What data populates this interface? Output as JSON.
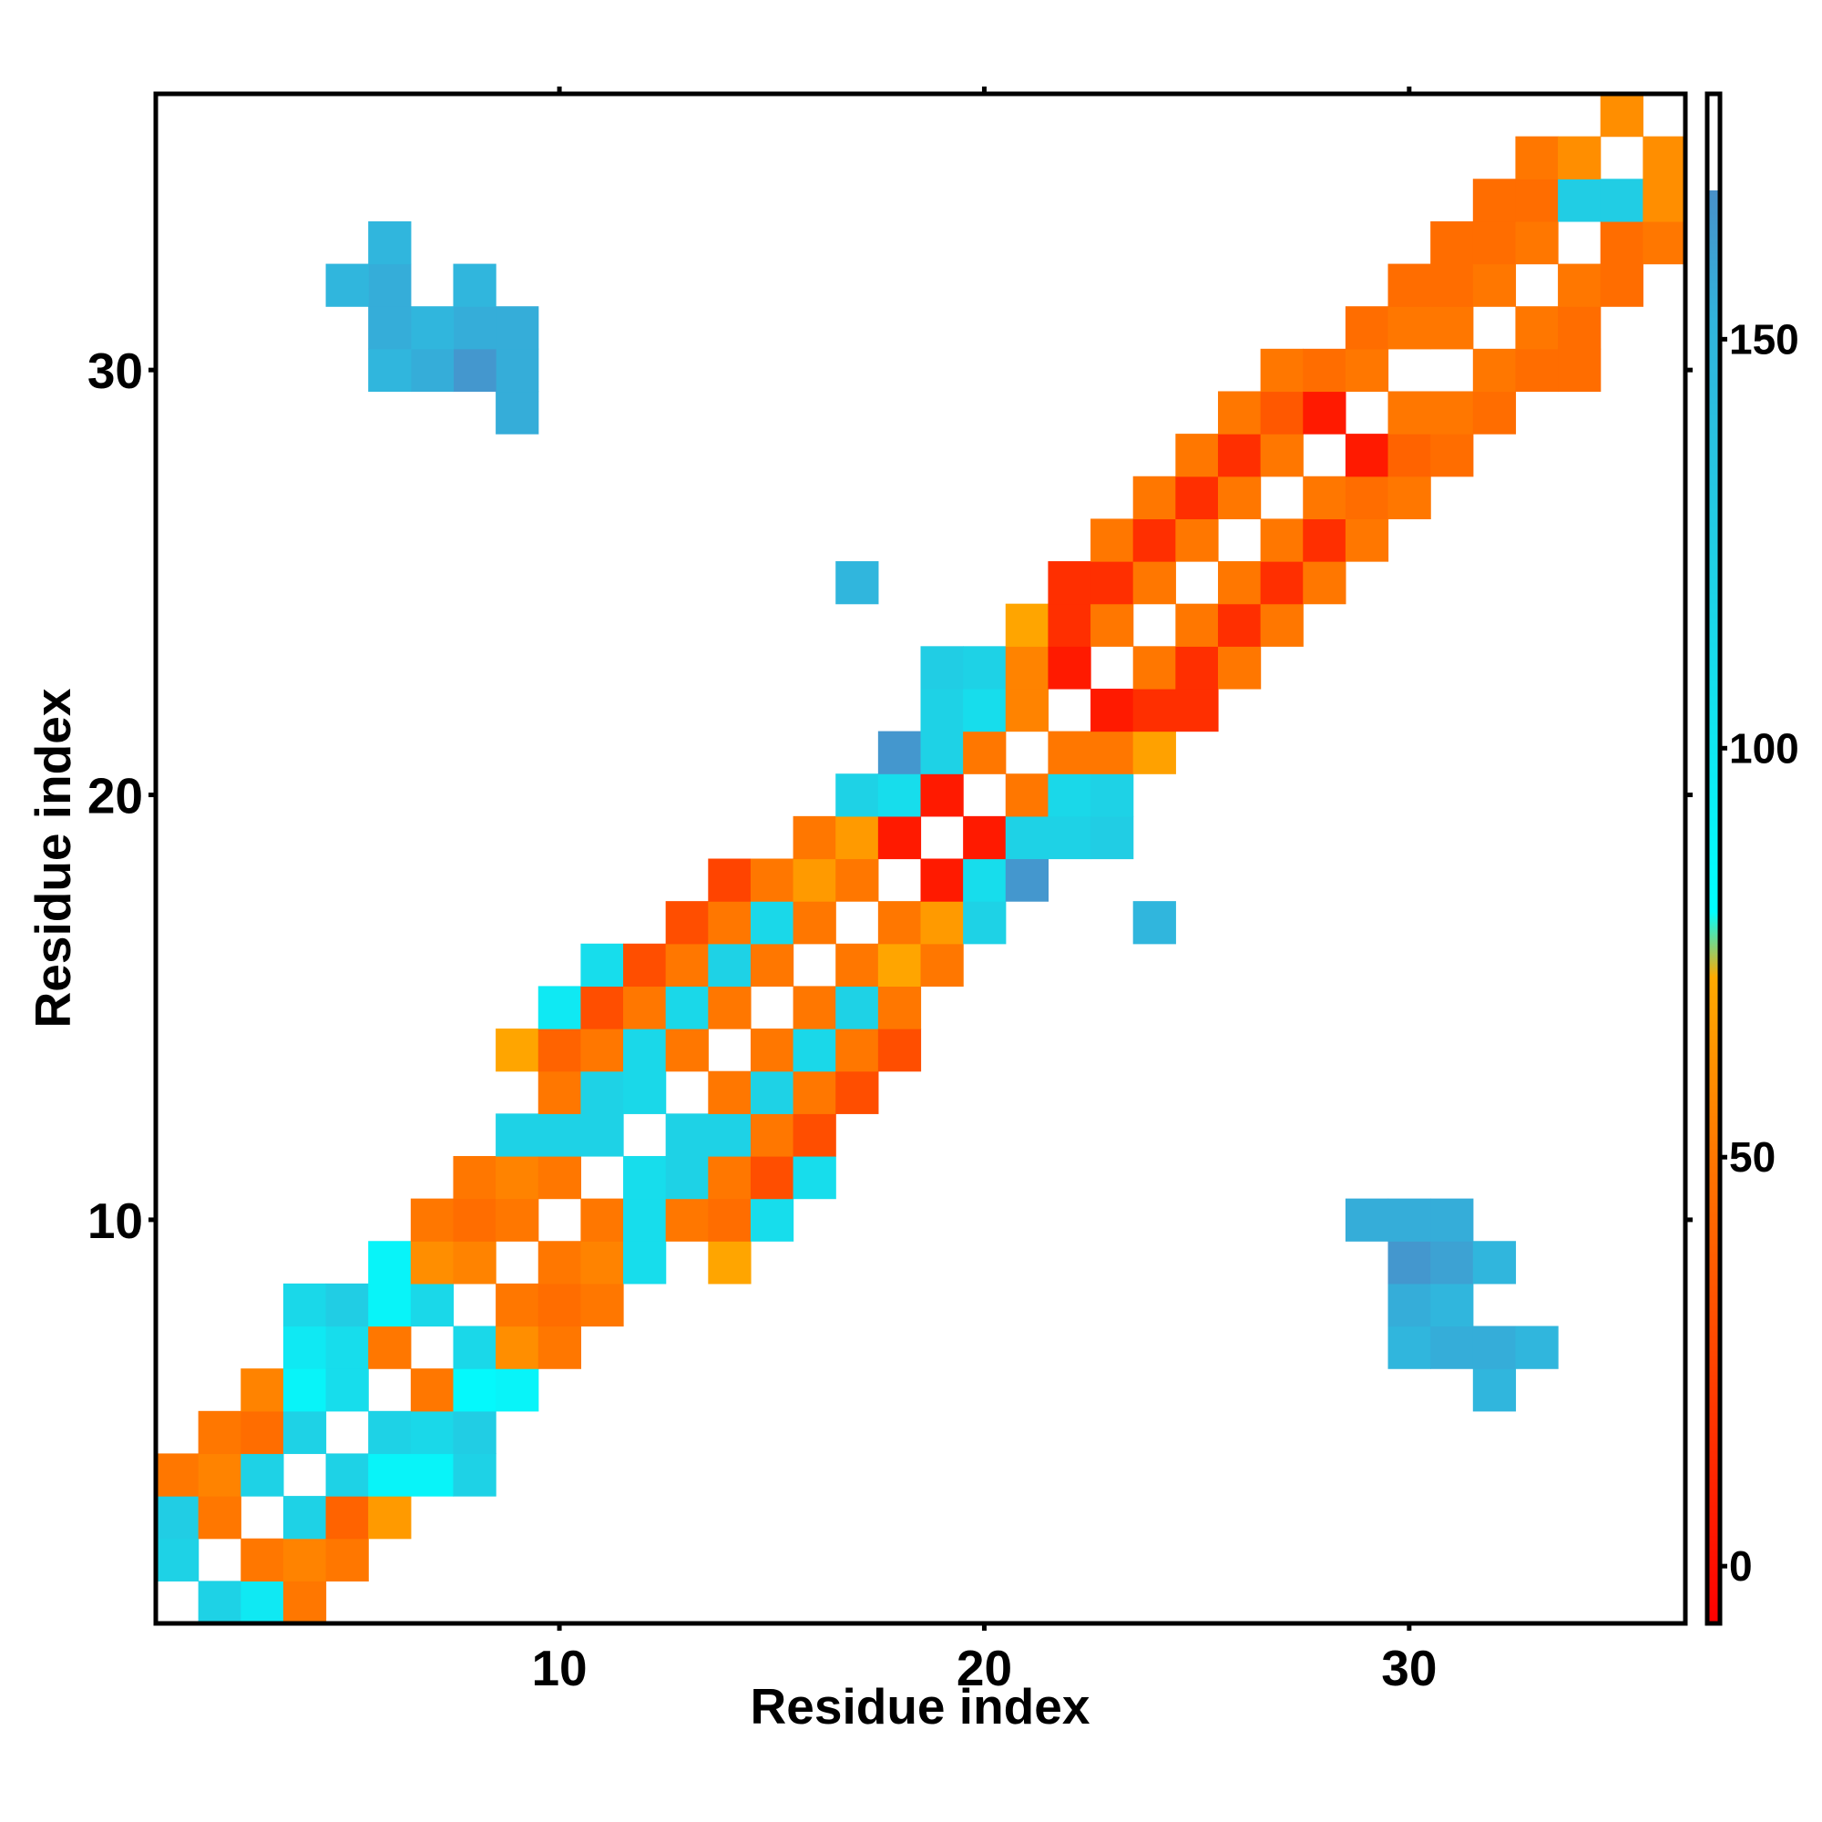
{
  "chart_data": {
    "type": "heatmap",
    "title": "",
    "xlabel": "Residue index",
    "ylabel": "Residue index",
    "xlim": [
      0.5,
      36.5
    ],
    "ylim": [
      0.5,
      36.5
    ],
    "x_ticks": [
      10,
      20,
      30
    ],
    "y_ticks": [
      10,
      20,
      30
    ],
    "grid": false,
    "colorbar": {
      "position": "right",
      "range": [
        -7,
        180
      ],
      "ticks": [
        0,
        50,
        100,
        150
      ],
      "stops": [
        {
          "value": -7,
          "color": "#ff0000"
        },
        {
          "value": 25,
          "color": "#ff4400"
        },
        {
          "value": 50,
          "color": "#ff7700"
        },
        {
          "value": 72,
          "color": "#ffaa00"
        },
        {
          "value": 80,
          "color": "#00ffff"
        },
        {
          "value": 120,
          "color": "#1ed2e6"
        },
        {
          "value": 152,
          "color": "#31b4dc"
        },
        {
          "value": 170,
          "color": "#4b8cc8"
        },
        {
          "value": 180,
          "color": "#4b8cc8"
        }
      ],
      "top_color": "#ffffff"
    },
    "cells": [
      [
        1,
        2,
        120
      ],
      [
        1,
        3,
        125
      ],
      [
        1,
        4,
        50
      ],
      [
        2,
        1,
        120
      ],
      [
        2,
        3,
        50
      ],
      [
        2,
        4,
        55
      ],
      [
        2,
        5,
        50
      ],
      [
        3,
        1,
        100
      ],
      [
        3,
        2,
        50
      ],
      [
        3,
        4,
        120
      ],
      [
        3,
        5,
        45
      ],
      [
        3,
        6,
        55
      ],
      [
        4,
        1,
        50
      ],
      [
        4,
        2,
        55
      ],
      [
        4,
        3,
        120
      ],
      [
        4,
        5,
        120
      ],
      [
        4,
        6,
        90
      ],
      [
        4,
        7,
        100
      ],
      [
        4,
        8,
        115
      ],
      [
        5,
        2,
        50
      ],
      [
        5,
        3,
        40
      ],
      [
        5,
        4,
        120
      ],
      [
        5,
        6,
        110
      ],
      [
        5,
        7,
        110
      ],
      [
        5,
        8,
        125
      ],
      [
        6,
        3,
        65
      ],
      [
        6,
        4,
        90
      ],
      [
        6,
        5,
        120
      ],
      [
        6,
        7,
        50
      ],
      [
        6,
        8,
        90
      ],
      [
        6,
        9,
        90
      ],
      [
        7,
        4,
        90
      ],
      [
        7,
        5,
        115
      ],
      [
        7,
        6,
        50
      ],
      [
        7,
        8,
        115
      ],
      [
        7,
        9,
        60
      ],
      [
        7,
        10,
        50
      ],
      [
        8,
        4,
        120
      ],
      [
        8,
        5,
        125
      ],
      [
        8,
        6,
        85
      ],
      [
        8,
        7,
        115
      ],
      [
        8,
        9,
        55
      ],
      [
        8,
        10,
        45
      ],
      [
        8,
        11,
        50
      ],
      [
        9,
        6,
        90
      ],
      [
        9,
        7,
        60
      ],
      [
        9,
        8,
        50
      ],
      [
        9,
        10,
        50
      ],
      [
        9,
        11,
        55
      ],
      [
        9,
        12,
        120
      ],
      [
        9,
        14,
        70
      ],
      [
        10,
        7,
        50
      ],
      [
        10,
        8,
        45
      ],
      [
        10,
        9,
        50
      ],
      [
        10,
        11,
        50
      ],
      [
        10,
        12,
        120
      ],
      [
        10,
        13,
        50
      ],
      [
        10,
        14,
        40
      ],
      [
        10,
        15,
        100
      ],
      [
        11,
        8,
        50
      ],
      [
        11,
        9,
        55
      ],
      [
        11,
        10,
        50
      ],
      [
        11,
        12,
        120
      ],
      [
        11,
        13,
        120
      ],
      [
        11,
        14,
        50
      ],
      [
        11,
        15,
        30
      ],
      [
        11,
        16,
        110
      ],
      [
        12,
        9,
        110
      ],
      [
        12,
        10,
        110
      ],
      [
        12,
        11,
        110
      ],
      [
        12,
        13,
        115
      ],
      [
        12,
        14,
        115
      ],
      [
        12,
        15,
        50
      ],
      [
        12,
        16,
        30
      ],
      [
        13,
        10,
        50
      ],
      [
        13,
        11,
        120
      ],
      [
        13,
        12,
        120
      ],
      [
        13,
        14,
        50
      ],
      [
        13,
        15,
        115
      ],
      [
        13,
        16,
        50
      ],
      [
        13,
        17,
        30
      ],
      [
        14,
        9,
        70
      ],
      [
        14,
        10,
        45
      ],
      [
        14,
        11,
        50
      ],
      [
        14,
        12,
        120
      ],
      [
        14,
        13,
        50
      ],
      [
        14,
        15,
        50
      ],
      [
        14,
        16,
        120
      ],
      [
        14,
        17,
        50
      ],
      [
        14,
        18,
        25
      ],
      [
        15,
        10,
        110
      ],
      [
        15,
        11,
        30
      ],
      [
        15,
        12,
        50
      ],
      [
        15,
        13,
        120
      ],
      [
        15,
        14,
        50
      ],
      [
        15,
        16,
        50
      ],
      [
        15,
        17,
        115
      ],
      [
        15,
        18,
        50
      ],
      [
        16,
        11,
        110
      ],
      [
        16,
        12,
        30
      ],
      [
        16,
        13,
        50
      ],
      [
        16,
        14,
        115
      ],
      [
        16,
        15,
        50
      ],
      [
        16,
        17,
        50
      ],
      [
        16,
        18,
        65
      ],
      [
        16,
        19,
        50
      ],
      [
        17,
        13,
        30
      ],
      [
        17,
        14,
        50
      ],
      [
        17,
        15,
        120
      ],
      [
        17,
        16,
        50
      ],
      [
        17,
        18,
        50
      ],
      [
        17,
        19,
        65
      ],
      [
        17,
        20,
        120
      ],
      [
        17,
        25,
        150
      ],
      [
        18,
        14,
        30
      ],
      [
        18,
        15,
        50
      ],
      [
        18,
        16,
        70
      ],
      [
        18,
        17,
        50
      ],
      [
        18,
        19,
        5
      ],
      [
        18,
        20,
        110
      ],
      [
        18,
        21,
        165
      ],
      [
        19,
        16,
        50
      ],
      [
        19,
        17,
        65
      ],
      [
        19,
        18,
        5
      ],
      [
        19,
        20,
        5
      ],
      [
        19,
        21,
        120
      ],
      [
        19,
        22,
        120
      ],
      [
        19,
        23,
        125
      ],
      [
        20,
        17,
        120
      ],
      [
        20,
        18,
        110
      ],
      [
        20,
        19,
        5
      ],
      [
        20,
        21,
        50
      ],
      [
        20,
        22,
        110
      ],
      [
        20,
        23,
        120
      ],
      [
        21,
        18,
        165
      ],
      [
        21,
        19,
        120
      ],
      [
        21,
        20,
        50
      ],
      [
        21,
        22,
        55
      ],
      [
        21,
        23,
        55
      ],
      [
        21,
        24,
        70
      ],
      [
        22,
        19,
        120
      ],
      [
        22,
        20,
        115
      ],
      [
        22,
        21,
        50
      ],
      [
        22,
        23,
        5
      ],
      [
        22,
        24,
        15
      ],
      [
        22,
        25,
        15
      ],
      [
        23,
        19,
        125
      ],
      [
        23,
        20,
        120
      ],
      [
        23,
        21,
        50
      ],
      [
        23,
        22,
        5
      ],
      [
        23,
        24,
        50
      ],
      [
        23,
        25,
        15
      ],
      [
        23,
        26,
        50
      ],
      [
        24,
        17,
        150
      ],
      [
        24,
        21,
        68
      ],
      [
        24,
        22,
        15
      ],
      [
        24,
        23,
        50
      ],
      [
        24,
        25,
        50
      ],
      [
        24,
        26,
        15
      ],
      [
        24,
        27,
        50
      ],
      [
        25,
        22,
        15
      ],
      [
        25,
        23,
        15
      ],
      [
        25,
        24,
        50
      ],
      [
        25,
        26,
        50
      ],
      [
        25,
        27,
        15
      ],
      [
        25,
        28,
        50
      ],
      [
        26,
        23,
        50
      ],
      [
        26,
        24,
        15
      ],
      [
        26,
        25,
        50
      ],
      [
        26,
        27,
        50
      ],
      [
        26,
        28,
        15
      ],
      [
        26,
        29,
        50
      ],
      [
        27,
        24,
        50
      ],
      [
        27,
        25,
        15
      ],
      [
        27,
        26,
        50
      ],
      [
        27,
        28,
        50
      ],
      [
        27,
        29,
        35
      ],
      [
        27,
        30,
        50
      ],
      [
        28,
        25,
        50
      ],
      [
        28,
        26,
        15
      ],
      [
        28,
        27,
        50
      ],
      [
        28,
        29,
        5
      ],
      [
        28,
        30,
        45
      ],
      [
        29,
        10,
        155
      ],
      [
        29,
        26,
        50
      ],
      [
        29,
        27,
        45
      ],
      [
        29,
        28,
        5
      ],
      [
        29,
        30,
        50
      ],
      [
        29,
        31,
        45
      ],
      [
        30,
        7,
        150
      ],
      [
        30,
        8,
        155
      ],
      [
        30,
        9,
        165
      ],
      [
        30,
        10,
        155
      ],
      [
        30,
        27,
        50
      ],
      [
        30,
        28,
        40
      ],
      [
        30,
        29,
        50
      ],
      [
        30,
        31,
        50
      ],
      [
        30,
        32,
        45
      ],
      [
        31,
        7,
        155
      ],
      [
        31,
        8,
        150
      ],
      [
        31,
        9,
        160
      ],
      [
        31,
        10,
        155
      ],
      [
        31,
        28,
        45
      ],
      [
        31,
        29,
        50
      ],
      [
        31,
        31,
        50
      ],
      [
        31,
        32,
        45
      ],
      [
        31,
        33,
        45
      ],
      [
        32,
        6,
        150
      ],
      [
        32,
        7,
        155
      ],
      [
        32,
        9,
        150
      ],
      [
        32,
        29,
        45
      ],
      [
        32,
        30,
        50
      ],
      [
        32,
        32,
        50
      ],
      [
        32,
        33,
        45
      ],
      [
        32,
        34,
        45
      ],
      [
        33,
        7,
        150
      ],
      [
        33,
        30,
        45
      ],
      [
        33,
        31,
        50
      ],
      [
        33,
        33,
        50
      ],
      [
        33,
        34,
        45
      ],
      [
        33,
        35,
        50
      ],
      [
        34,
        30,
        45
      ],
      [
        34,
        31,
        45
      ],
      [
        34,
        32,
        50
      ],
      [
        34,
        34,
        125
      ],
      [
        34,
        35,
        60
      ],
      [
        35,
        32,
        45
      ],
      [
        35,
        33,
        45
      ],
      [
        35,
        34,
        125
      ],
      [
        35,
        36,
        60
      ],
      [
        36,
        33,
        50
      ],
      [
        36,
        34,
        60
      ],
      [
        36,
        35,
        60
      ],
      [
        9,
        29,
        155
      ],
      [
        9,
        30,
        155
      ],
      [
        9,
        31,
        155
      ],
      [
        8,
        30,
        165
      ],
      [
        8,
        31,
        155
      ],
      [
        8,
        32,
        150
      ],
      [
        7,
        30,
        155
      ],
      [
        7,
        31,
        150
      ],
      [
        6,
        30,
        150
      ],
      [
        6,
        31,
        155
      ],
      [
        6,
        32,
        155
      ],
      [
        6,
        33,
        150
      ],
      [
        5,
        32,
        150
      ]
    ]
  }
}
